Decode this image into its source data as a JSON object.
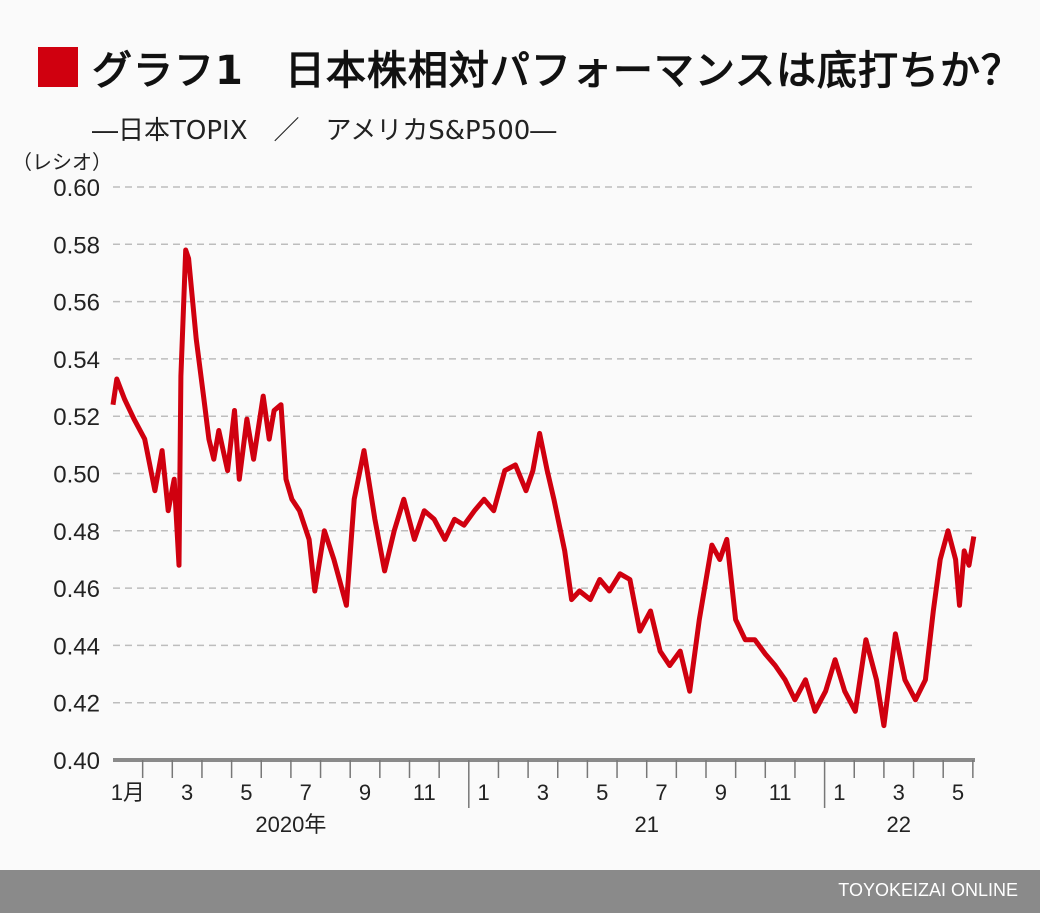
{
  "title": "グラフ1　日本株相対パフォーマンスは底打ちか？",
  "subtitle": "―日本TOPIX　／　アメリカS&P500―",
  "unit_label": "（レシオ）",
  "footer": "TOYOKEIZAI ONLINE",
  "colors": {
    "accent": "#d0000f",
    "grid": "#bdbdbd",
    "axis": "#8a8a8a",
    "footer_bg": "#8a8a8a"
  },
  "chart_data": {
    "type": "line",
    "title": "グラフ1　日本株相対パフォーマンスは底打ちか？",
    "ylabel": "（レシオ）",
    "ylim": [
      0.4,
      0.6
    ],
    "yticks": [
      "0.60",
      "0.58",
      "0.56",
      "0.54",
      "0.52",
      "0.50",
      "0.48",
      "0.46",
      "0.44",
      "0.42",
      "0.40"
    ],
    "xlim": [
      "2020-01-01",
      "2022-06-03"
    ],
    "grid": true,
    "month_labels": [
      {
        "label": "1月",
        "year": 2020,
        "month": 1
      },
      {
        "label": "3",
        "year": 2020,
        "month": 3
      },
      {
        "label": "5",
        "year": 2020,
        "month": 5
      },
      {
        "label": "7",
        "year": 2020,
        "month": 7
      },
      {
        "label": "9",
        "year": 2020,
        "month": 9
      },
      {
        "label": "11",
        "year": 2020,
        "month": 11
      },
      {
        "label": "1",
        "year": 2021,
        "month": 1
      },
      {
        "label": "3",
        "year": 2021,
        "month": 3
      },
      {
        "label": "5",
        "year": 2021,
        "month": 5
      },
      {
        "label": "7",
        "year": 2021,
        "month": 7
      },
      {
        "label": "9",
        "year": 2021,
        "month": 9
      },
      {
        "label": "11",
        "year": 2021,
        "month": 11
      },
      {
        "label": "1",
        "year": 2022,
        "month": 1
      },
      {
        "label": "3",
        "year": 2022,
        "month": 3
      },
      {
        "label": "5",
        "year": 2022,
        "month": 5
      }
    ],
    "year_labels": [
      {
        "label": "2020年",
        "year": 2020
      },
      {
        "label": "21",
        "year": 2021
      },
      {
        "label": "22",
        "year": 2022
      }
    ],
    "series": [
      {
        "x": [
          "2020-01-01",
          "2020-01-05",
          "2020-01-13",
          "2020-01-23",
          "2020-02-03",
          "2020-02-13",
          "2020-02-20",
          "2020-02-26",
          "2020-03-03",
          "2020-03-08",
          "2020-03-10",
          "2020-03-15",
          "2020-03-18",
          "2020-03-22",
          "2020-03-26",
          "2020-04-03",
          "2020-04-08",
          "2020-04-13",
          "2020-04-18",
          "2020-04-27",
          "2020-05-04",
          "2020-05-09",
          "2020-05-17",
          "2020-05-24",
          "2020-06-03",
          "2020-06-09",
          "2020-06-14",
          "2020-06-21",
          "2020-06-26",
          "2020-07-02",
          "2020-07-10",
          "2020-07-20",
          "2020-07-26",
          "2020-08-05",
          "2020-08-15",
          "2020-08-28",
          "2020-09-05",
          "2020-09-15",
          "2020-09-26",
          "2020-10-06",
          "2020-10-16",
          "2020-10-26",
          "2020-11-06",
          "2020-11-16",
          "2020-11-26",
          "2020-12-07",
          "2020-12-17",
          "2020-12-27",
          "2021-01-07",
          "2021-01-17",
          "2021-01-27",
          "2021-02-07",
          "2021-02-17",
          "2021-02-27",
          "2021-03-06",
          "2021-03-13",
          "2021-03-21",
          "2021-03-28",
          "2021-04-08",
          "2021-04-15",
          "2021-04-23",
          "2021-05-04",
          "2021-05-14",
          "2021-05-24",
          "2021-06-04",
          "2021-06-14",
          "2021-06-24",
          "2021-07-05",
          "2021-07-15",
          "2021-07-25",
          "2021-08-05",
          "2021-08-15",
          "2021-08-25",
          "2021-09-07",
          "2021-09-15",
          "2021-09-22",
          "2021-10-01",
          "2021-10-11",
          "2021-10-21",
          "2021-11-01",
          "2021-11-11",
          "2021-11-21",
          "2021-12-01",
          "2021-12-12",
          "2021-12-22",
          "2022-01-02",
          "2022-01-12",
          "2022-01-22",
          "2022-02-02",
          "2022-02-12",
          "2022-02-22",
          "2022-03-01",
          "2022-03-13",
          "2022-03-23",
          "2022-04-03",
          "2022-04-13",
          "2022-04-21",
          "2022-04-28",
          "2022-05-06",
          "2022-05-14",
          "2022-05-18",
          "2022-05-23",
          "2022-05-28",
          "2022-06-02"
        ],
        "values": [
          0.524,
          0.533,
          0.526,
          0.519,
          0.512,
          0.494,
          0.508,
          0.487,
          0.498,
          0.468,
          0.534,
          0.578,
          0.575,
          0.561,
          0.547,
          0.526,
          0.512,
          0.505,
          0.515,
          0.501,
          0.522,
          0.498,
          0.519,
          0.505,
          0.527,
          0.512,
          0.522,
          0.524,
          0.498,
          0.491,
          0.487,
          0.477,
          0.459,
          0.48,
          0.47,
          0.454,
          0.491,
          0.508,
          0.484,
          0.466,
          0.48,
          0.491,
          0.477,
          0.487,
          0.484,
          0.477,
          0.484,
          0.482,
          0.487,
          0.491,
          0.487,
          0.501,
          0.503,
          0.494,
          0.501,
          0.514,
          0.501,
          0.491,
          0.473,
          0.456,
          0.459,
          0.456,
          0.463,
          0.459,
          0.465,
          0.463,
          0.445,
          0.452,
          0.438,
          0.433,
          0.438,
          0.424,
          0.449,
          0.475,
          0.47,
          0.477,
          0.449,
          0.442,
          0.442,
          0.437,
          0.433,
          0.428,
          0.421,
          0.428,
          0.417,
          0.424,
          0.435,
          0.424,
          0.417,
          0.442,
          0.428,
          0.412,
          0.444,
          0.428,
          0.421,
          0.428,
          0.452,
          0.47,
          0.48,
          0.47,
          0.454,
          0.473,
          0.468,
          0.478
        ]
      }
    ]
  }
}
